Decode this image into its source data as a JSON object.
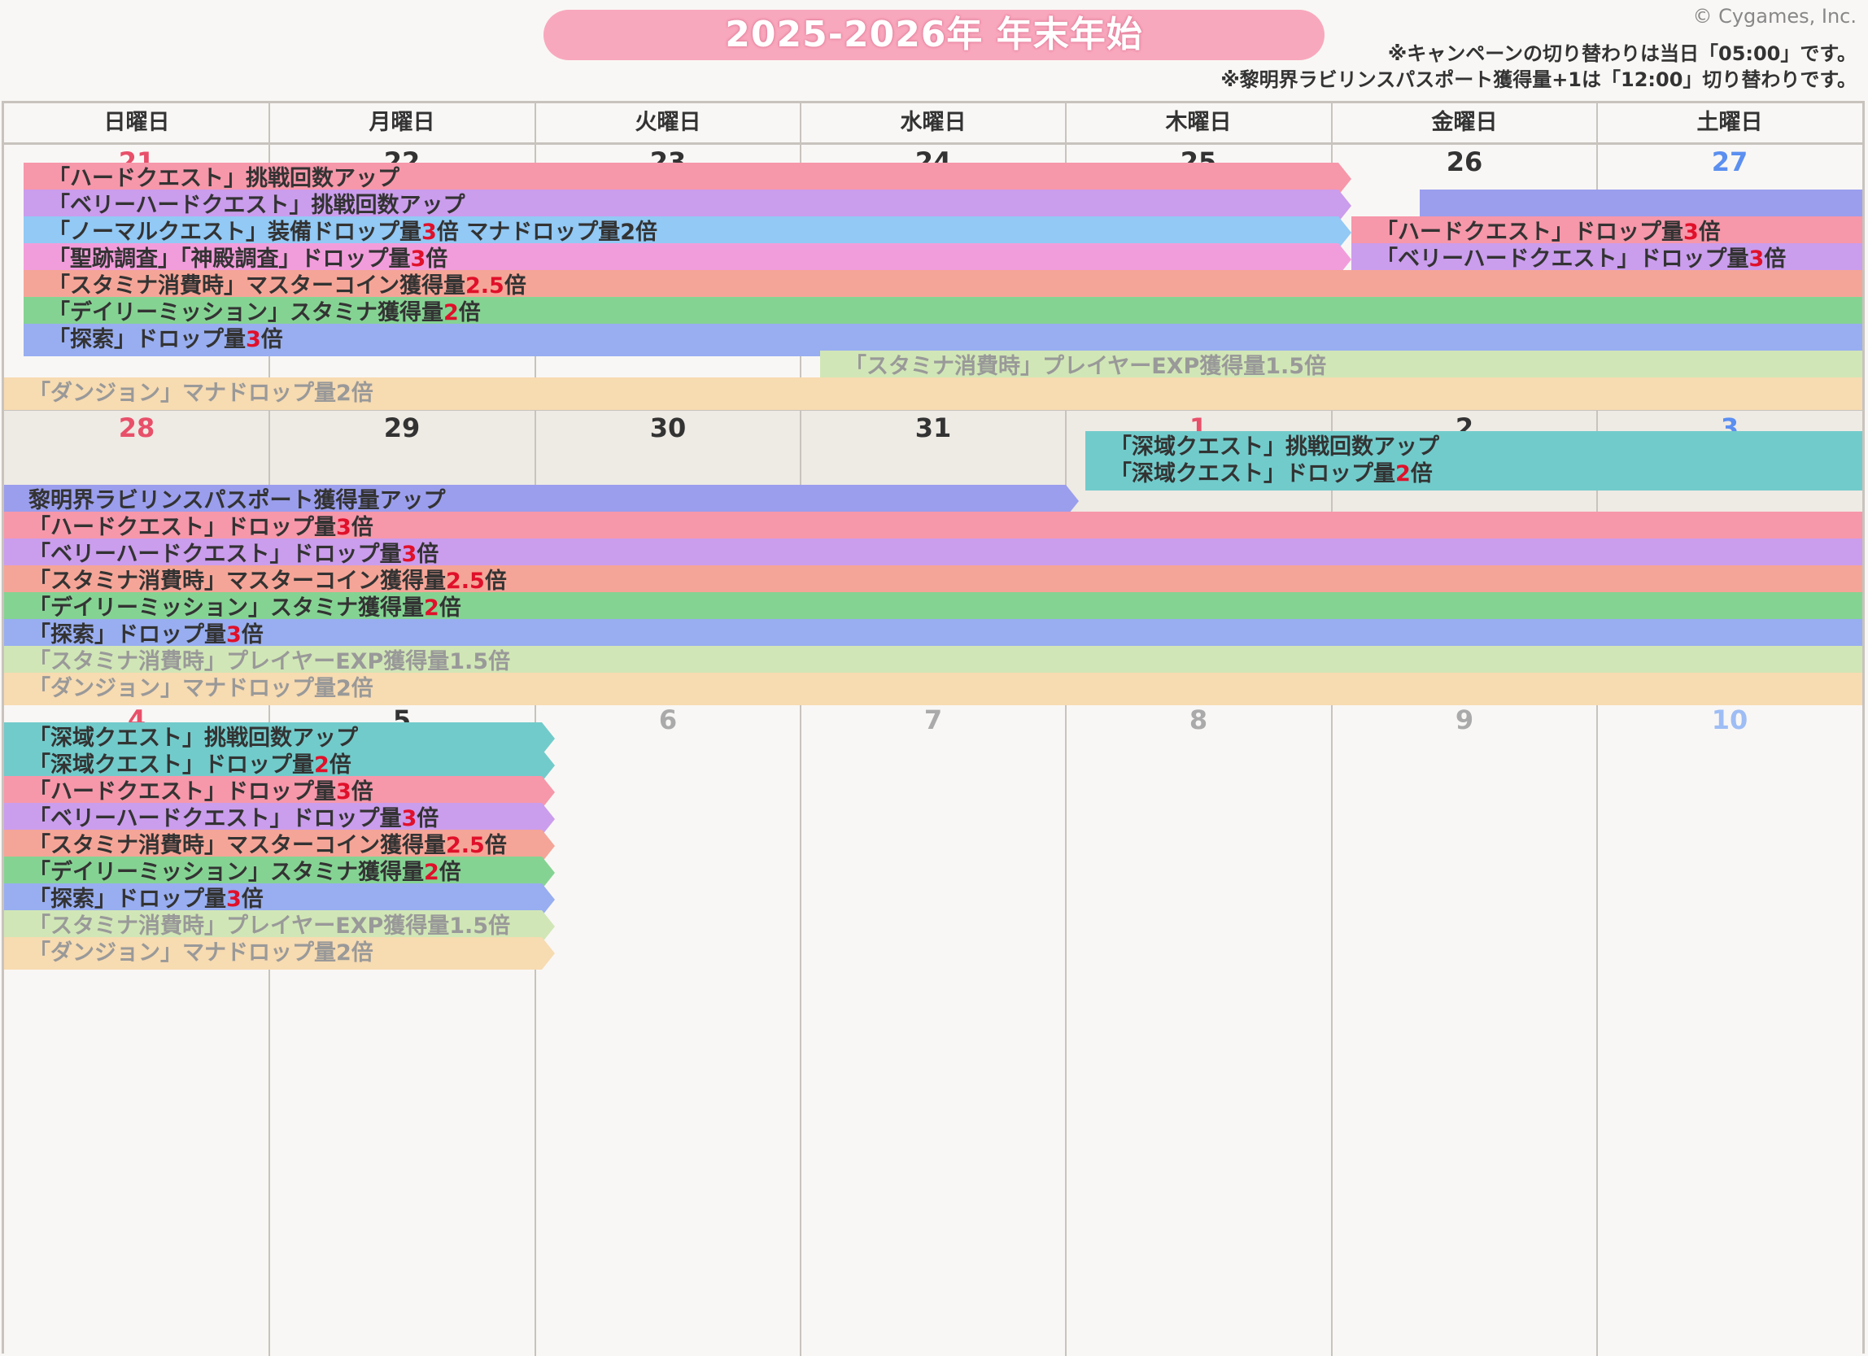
{
  "header": {
    "title": "2025-2026年 年末年始",
    "copyright": "© Cygames, Inc.",
    "note1": "※キャンペーンの切り替わりは当日「05:00」です。",
    "note2": "※黎明界ラビリンスパスポート獲得量+1は「12:00」切り替わりです。"
  },
  "weekdays": [
    "日曜日",
    "月曜日",
    "火曜日",
    "水曜日",
    "木曜日",
    "金曜日",
    "土曜日"
  ],
  "weeks": [
    {
      "dates": [
        "21",
        "22",
        "23",
        "24",
        "25",
        "26",
        "27"
      ],
      "bars": [
        {
          "text": "「ハードクエスト」挑戦回数アップ",
          "color": "hard",
          "start": 0,
          "end": 5
        },
        {
          "text": "「ベリーハードクエスト」挑戦回数アップ",
          "color": "vhard",
          "start": 0,
          "end": 5
        },
        {
          "text": "",
          "color": "passport",
          "start": 5,
          "end": 7
        },
        {
          "text": "「ノーマルクエスト」装備ドロップ量",
          "hl": "3",
          "suffix": "倍 マナドロップ量2倍",
          "color": "normal",
          "start": 0,
          "end": 5
        },
        {
          "text": "「ハードクエスト」ドロップ量",
          "hl": "3",
          "suffix": "倍",
          "color": "hard",
          "start": 5,
          "end": 7
        },
        {
          "text": "「聖跡調査」「神殿調査」ドロップ量",
          "hl": "3",
          "suffix": "倍",
          "color": "seiseki",
          "start": 0,
          "end": 5
        },
        {
          "text": "「ベリーハードクエスト」ドロップ量",
          "hl": "3",
          "suffix": "倍",
          "color": "vhard",
          "start": 5,
          "end": 7
        },
        {
          "text": "「スタミナ消費時」マスターコイン獲得量",
          "hl": "2.5",
          "suffix": "倍",
          "color": "stamina",
          "start": 0,
          "end": 7
        },
        {
          "text": "「デイリーミッション」スタミナ獲得量",
          "hl": "2",
          "suffix": "倍",
          "color": "daily",
          "start": 0,
          "end": 7
        },
        {
          "text": "「探索」ドロップ量",
          "hl": "3",
          "suffix": "倍",
          "color": "tansaku",
          "start": 0,
          "end": 7
        },
        {
          "text": "「スタミナ消費時」プレイヤーEXP獲得量1.5倍",
          "color": "pexp",
          "start": 3,
          "end": 7
        },
        {
          "text": "「ダンジョン」マナドロップ量2倍",
          "color": "dungeon",
          "start": 0,
          "end": 7
        }
      ]
    },
    {
      "dates": [
        "28",
        "29",
        "30",
        "31",
        "1",
        "2",
        "3"
      ],
      "bars": [
        {
          "text": "「深域クエスト」挑戦回数アップ",
          "color": "shinri",
          "start": 4,
          "end": 7
        },
        {
          "text": "「深域クエスト」ドロップ量",
          "hl": "2",
          "suffix": "倍",
          "color": "shinri",
          "start": 4,
          "end": 7
        },
        {
          "text": "黎明界ラビリンスパスポート獲得量アップ",
          "color": "passport",
          "start": 0,
          "end": 4
        },
        {
          "text": "「ハードクエスト」ドロップ量",
          "hl": "3",
          "suffix": "倍",
          "color": "hard",
          "start": 0,
          "end": 7
        },
        {
          "text": "「ベリーハードクエスト」ドロップ量",
          "hl": "3",
          "suffix": "倍",
          "color": "vhard",
          "start": 0,
          "end": 7
        },
        {
          "text": "「スタミナ消費時」マスターコイン獲得量",
          "hl": "2.5",
          "suffix": "倍",
          "color": "stamina",
          "start": 0,
          "end": 7
        },
        {
          "text": "「デイリーミッション」スタミナ獲得量",
          "hl": "2",
          "suffix": "倍",
          "color": "daily",
          "start": 0,
          "end": 7
        },
        {
          "text": "「探索」ドロップ量",
          "hl": "3",
          "suffix": "倍",
          "color": "tansaku",
          "start": 0,
          "end": 7
        },
        {
          "text": "「スタミナ消費時」プレイヤーEXP獲得量1.5倍",
          "color": "pexp",
          "start": 0,
          "end": 7
        },
        {
          "text": "「ダンジョン」マナドロップ量2倍",
          "color": "dungeon",
          "start": 0,
          "end": 7
        }
      ]
    },
    {
      "dates": [
        "4",
        "5",
        "6",
        "7",
        "8",
        "9",
        "10"
      ],
      "bars": [
        {
          "text": "「深域クエスト」挑戦回数アップ",
          "color": "shinri",
          "start": 0,
          "end": 2
        },
        {
          "text": "「深域クエスト」ドロップ量",
          "hl": "2",
          "suffix": "倍",
          "color": "shinri",
          "start": 0,
          "end": 2
        },
        {
          "text": "「ハードクエスト」ドロップ量",
          "hl": "3",
          "suffix": "倍",
          "color": "hard",
          "start": 0,
          "end": 2
        },
        {
          "text": "「ベリーハードクエスト」ドロップ量",
          "hl": "3",
          "suffix": "倍",
          "color": "vhard",
          "start": 0,
          "end": 2
        },
        {
          "text": "「スタミナ消費時」マスターコイン獲得量",
          "hl": "2.5",
          "suffix": "倍",
          "color": "stamina",
          "start": 0,
          "end": 2
        },
        {
          "text": "「デイリーミッション」スタミナ獲得量",
          "hl": "2",
          "suffix": "倍",
          "color": "daily",
          "start": 0,
          "end": 2
        },
        {
          "text": "「探索」ドロップ量",
          "hl": "3",
          "suffix": "倍",
          "color": "tansaku",
          "start": 0,
          "end": 2
        },
        {
          "text": "「スタミナ消費時」プレイヤーEXP獲得量1.5倍",
          "color": "pexp",
          "start": 0,
          "end": 2
        },
        {
          "text": "「ダンジョン」マナドロップ量2倍",
          "color": "dungeon",
          "start": 0,
          "end": 2
        }
      ]
    }
  ]
}
